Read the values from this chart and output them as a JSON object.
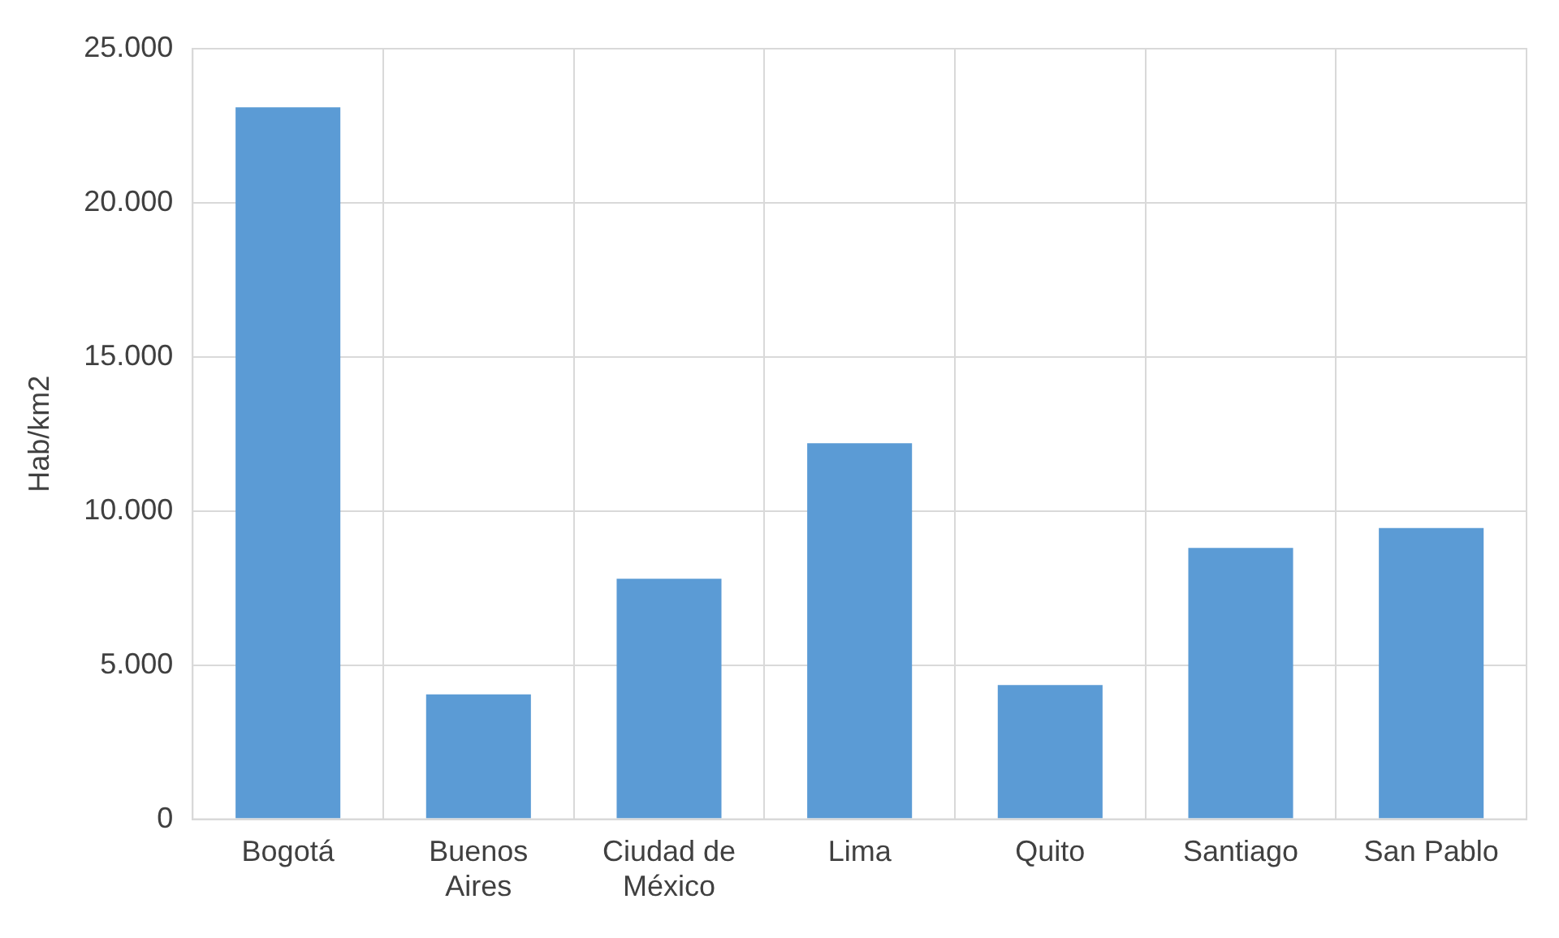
{
  "chart_data": {
    "type": "bar",
    "ylabel": "Hab/km2",
    "categories": [
      "Bogotá",
      "Buenos Aires",
      "Ciudad de México",
      "Lima",
      "Quito",
      "Santiago",
      "San Pablo"
    ],
    "values": [
      23100,
      4050,
      7800,
      12200,
      4350,
      8800,
      9450
    ],
    "color": "#5b9bd5",
    "ylim": [
      0,
      25000
    ],
    "yticks": [
      {
        "value": 0,
        "label": "0"
      },
      {
        "value": 5000,
        "label": "5.000"
      },
      {
        "value": 10000,
        "label": "10.000"
      },
      {
        "value": 15000,
        "label": "15.000"
      },
      {
        "value": 20000,
        "label": "20.000"
      },
      {
        "value": 25000,
        "label": "25.000"
      }
    ],
    "grid": true
  }
}
